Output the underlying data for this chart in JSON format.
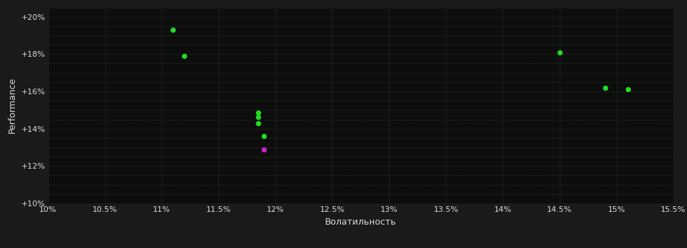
{
  "background_color": "#1a1a1a",
  "plot_bg_color": "#0d0d0d",
  "grid_color": "#2e4a2e",
  "text_color": "#dddddd",
  "xlabel": "Волатильность",
  "ylabel": "Performance",
  "xlim": [
    0.1,
    0.155
  ],
  "ylim": [
    0.1,
    0.205
  ],
  "xtick_vals": [
    0.1,
    0.105,
    0.11,
    0.115,
    0.12,
    0.125,
    0.13,
    0.135,
    0.14,
    0.145,
    0.15,
    0.155
  ],
  "ytick_vals": [
    0.1,
    0.105,
    0.11,
    0.115,
    0.12,
    0.125,
    0.13,
    0.135,
    0.14,
    0.145,
    0.15,
    0.155,
    0.16,
    0.165,
    0.17,
    0.175,
    0.18,
    0.185,
    0.19,
    0.195,
    0.2,
    0.205
  ],
  "ytick_labels_vals": [
    0.1,
    0.12,
    0.14,
    0.16,
    0.18,
    0.2
  ],
  "points_green": [
    [
      0.111,
      0.193
    ],
    [
      0.112,
      0.179
    ],
    [
      0.1185,
      0.1485
    ],
    [
      0.1185,
      0.1465
    ],
    [
      0.1185,
      0.143
    ],
    [
      0.119,
      0.136
    ],
    [
      0.145,
      0.181
    ],
    [
      0.149,
      0.162
    ],
    [
      0.151,
      0.161
    ]
  ],
  "points_magenta": [
    [
      0.119,
      0.129
    ]
  ],
  "green_color": "#22dd22",
  "magenta_color": "#cc22cc",
  "marker_size": 28,
  "font_size_ticks": 8,
  "font_size_labels": 9
}
